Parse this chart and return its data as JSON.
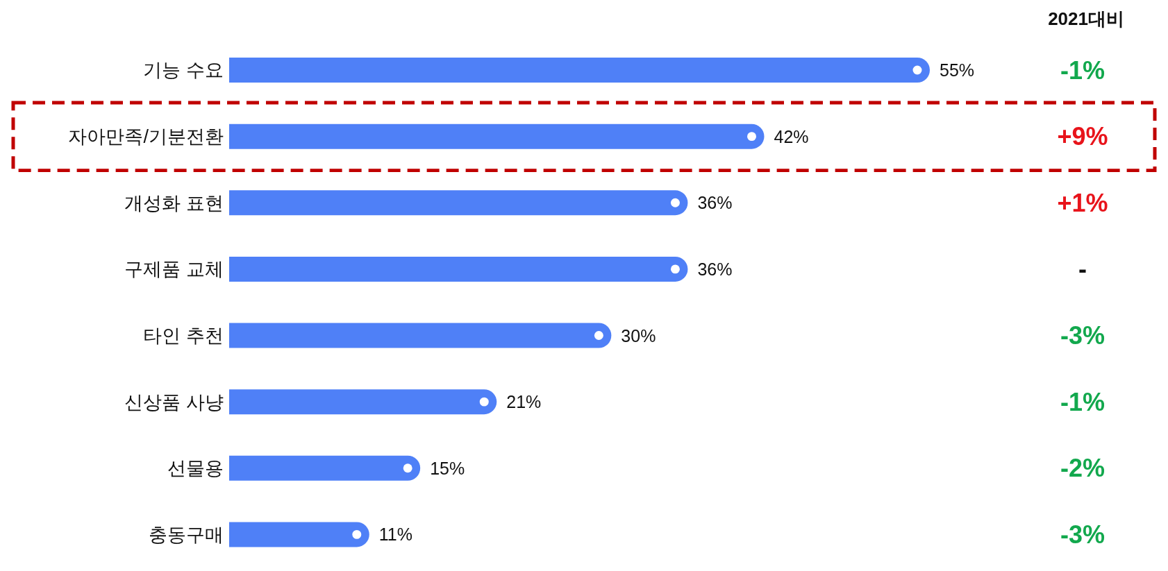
{
  "chart_data": {
    "type": "bar",
    "orientation": "horizontal",
    "categories": [
      "기능 수요",
      "자아만족/기분전환",
      "개성화 표현",
      "구제품 교체",
      "타인 추천",
      "신상품 사냥",
      "선물용",
      "충동구매"
    ],
    "values": [
      55,
      42,
      36,
      36,
      30,
      21,
      15,
      11
    ],
    "value_labels": [
      "55%",
      "42%",
      "36%",
      "36%",
      "30%",
      "21%",
      "15%",
      "11%"
    ],
    "color": "#4f80f7",
    "annotations": [
      "2021대비",
      "-1%",
      "+9%",
      "+1%",
      "-",
      "-3%",
      "-1%",
      "-2%",
      "-3%"
    ],
    "grid": false,
    "legend": false
  }
}
